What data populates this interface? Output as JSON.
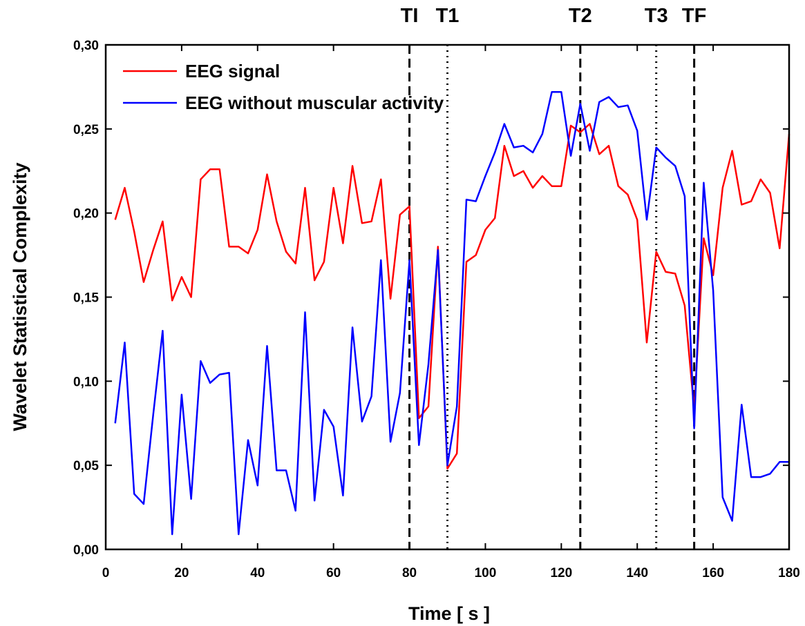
{
  "chart_data": {
    "type": "line",
    "title": "",
    "xlabel": "Time [ s ]",
    "ylabel": "Wavelet  Statistical  Complexity",
    "xlim": [
      0,
      180
    ],
    "ylim": [
      0.0,
      0.3
    ],
    "xticks": [
      0,
      20,
      40,
      60,
      80,
      100,
      120,
      140,
      160,
      180
    ],
    "xtick_labels": [
      "0",
      "20",
      "40",
      "60",
      "80",
      "100",
      "120",
      "140",
      "160",
      "180"
    ],
    "yticks": [
      0.0,
      0.05,
      0.1,
      0.15,
      0.2,
      0.25,
      0.3
    ],
    "ytick_labels": [
      "0,00",
      "0,05",
      "0,10",
      "0,15",
      "0,20",
      "0,25",
      "0,30"
    ],
    "grid": false,
    "legend_position": "top-left",
    "x": [
      2.5,
      5,
      7.5,
      10,
      12.5,
      15,
      17.5,
      20,
      22.5,
      25,
      27.5,
      30,
      32.5,
      35,
      37.5,
      40,
      42.5,
      45,
      47.5,
      50,
      52.5,
      55,
      57.5,
      60,
      62.5,
      65,
      67.5,
      70,
      72.5,
      75,
      77.5,
      80,
      82.5,
      85,
      87.5,
      90,
      92.5,
      95,
      97.5,
      100,
      102.5,
      105,
      107.5,
      110,
      112.5,
      115,
      117.5,
      120,
      122.5,
      125,
      127.5,
      130,
      132.5,
      135,
      137.5,
      140,
      142.5,
      145,
      147.5,
      150,
      152.5,
      155,
      157.5,
      160,
      162.5,
      165,
      167.5,
      170,
      172.5,
      175,
      177.5,
      180
    ],
    "series": [
      {
        "name": "EEG signal",
        "color": "#ff0000",
        "values": [
          0.196,
          0.215,
          0.189,
          0.159,
          0.178,
          0.195,
          0.148,
          0.162,
          0.15,
          0.22,
          0.226,
          0.226,
          0.18,
          0.18,
          0.176,
          0.19,
          0.223,
          0.195,
          0.177,
          0.17,
          0.215,
          0.16,
          0.171,
          0.215,
          0.182,
          0.228,
          0.194,
          0.195,
          0.22,
          0.149,
          0.199,
          0.204,
          0.078,
          0.085,
          0.18,
          0.048,
          0.057,
          0.171,
          0.175,
          0.19,
          0.197,
          0.24,
          0.222,
          0.225,
          0.215,
          0.222,
          0.216,
          0.216,
          0.252,
          0.248,
          0.253,
          0.235,
          0.24,
          0.216,
          0.211,
          0.196,
          0.123,
          0.177,
          0.165,
          0.164,
          0.145,
          0.083,
          0.185,
          0.163,
          0.215,
          0.237,
          0.205,
          0.207,
          0.22,
          0.212,
          0.179,
          0.247
        ]
      },
      {
        "name": "EEG without muscular activity",
        "color": "#0000ff",
        "values": [
          0.075,
          0.123,
          0.033,
          0.027,
          0.08,
          0.13,
          0.009,
          0.092,
          0.03,
          0.112,
          0.099,
          0.104,
          0.105,
          0.009,
          0.065,
          0.038,
          0.121,
          0.047,
          0.047,
          0.023,
          0.141,
          0.029,
          0.083,
          0.073,
          0.032,
          0.132,
          0.076,
          0.091,
          0.172,
          0.064,
          0.093,
          0.172,
          0.062,
          0.11,
          0.178,
          0.05,
          0.085,
          0.208,
          0.207,
          0.222,
          0.236,
          0.253,
          0.239,
          0.24,
          0.236,
          0.247,
          0.272,
          0.272,
          0.234,
          0.265,
          0.237,
          0.266,
          0.269,
          0.263,
          0.264,
          0.249,
          0.196,
          0.239,
          0.233,
          0.228,
          0.21,
          0.072,
          0.218,
          0.154,
          0.031,
          0.017,
          0.086,
          0.043,
          0.043,
          0.045,
          0.052,
          0.052
        ]
      }
    ],
    "vertical_markers": [
      {
        "label": "TI",
        "x": 80,
        "style": "dashed"
      },
      {
        "label": "T1",
        "x": 90,
        "style": "dotted"
      },
      {
        "label": "T2",
        "x": 125,
        "style": "dashed"
      },
      {
        "label": "T3",
        "x": 145,
        "style": "dotted"
      },
      {
        "label": "TF",
        "x": 155,
        "style": "dashed"
      }
    ]
  }
}
